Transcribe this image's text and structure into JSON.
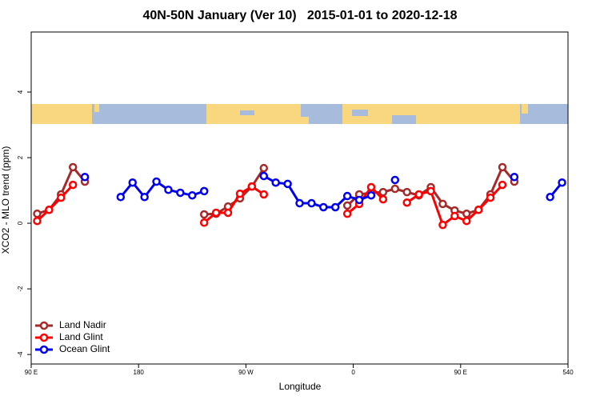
{
  "chart_data": {
    "type": "line",
    "title": "40N-50N January (Ver 10)   2015-01-01 to 2020-12-18",
    "x_label": "Longitude",
    "y_label": "XCO2 - MLO trend (ppm)",
    "x": [
      95,
      105,
      115,
      125,
      135,
      145,
      155,
      165,
      175,
      185,
      195,
      205,
      215,
      225,
      235,
      245,
      255,
      265,
      275,
      285,
      295,
      305,
      315,
      325,
      335,
      345,
      355,
      365,
      375,
      385,
      395,
      405,
      415,
      425,
      435,
      445,
      455,
      465,
      475,
      485,
      495,
      505,
      515,
      525,
      535
    ],
    "series": [
      {
        "name": "Land Nadir",
        "color": "#a52a2a",
        "values": [
          0.29,
          0.41,
          0.88,
          1.71,
          1.27,
          null,
          null,
          null,
          null,
          null,
          null,
          null,
          null,
          null,
          0.27,
          0.29,
          0.51,
          0.76,
          1.12,
          1.68,
          null,
          null,
          null,
          null,
          null,
          null,
          0.54,
          0.88,
          0.93,
          0.95,
          1.05,
          0.95,
          0.85,
          1.1,
          0.59,
          0.39,
          0.29,
          0.41,
          0.88,
          1.71,
          1.27,
          null,
          null,
          null,
          null
        ]
      },
      {
        "name": "Land Glint",
        "color": "#ff0000",
        "values": [
          0.07,
          0.41,
          0.78,
          1.17,
          null,
          null,
          null,
          null,
          null,
          null,
          null,
          null,
          null,
          null,
          0.02,
          0.32,
          0.32,
          0.9,
          1.12,
          0.88,
          null,
          null,
          null,
          null,
          null,
          null,
          0.29,
          0.59,
          1.1,
          0.73,
          null,
          0.63,
          0.88,
          0.98,
          -0.05,
          0.22,
          0.07,
          0.41,
          0.78,
          1.17,
          null,
          null,
          null,
          null,
          null
        ]
      },
      {
        "name": "Ocean Glint",
        "color": "#0000ee",
        "values": [
          null,
          null,
          null,
          null,
          1.41,
          null,
          null,
          0.8,
          1.24,
          0.8,
          1.27,
          1.02,
          0.93,
          0.85,
          0.98,
          null,
          null,
          null,
          null,
          1.44,
          1.24,
          1.2,
          0.61,
          0.61,
          0.49,
          0.49,
          0.83,
          0.71,
          0.85,
          null,
          1.32,
          null,
          null,
          null,
          null,
          null,
          null,
          null,
          null,
          null,
          1.41,
          null,
          null,
          0.8,
          1.24
        ]
      }
    ],
    "xlim": [
      90,
      540
    ],
    "xticks": [
      {
        "value": 90,
        "label": "90 E"
      },
      180,
      {
        "value": 270,
        "label": "90 W"
      },
      {
        "value": 360,
        "label": "0"
      },
      {
        "value": 450,
        "label": "90 E"
      },
      540
    ],
    "ylim": [
      -4.29,
      5.83
    ],
    "yticks": [
      -4,
      -2,
      0,
      2,
      4
    ],
    "legend": "bottom-left"
  }
}
